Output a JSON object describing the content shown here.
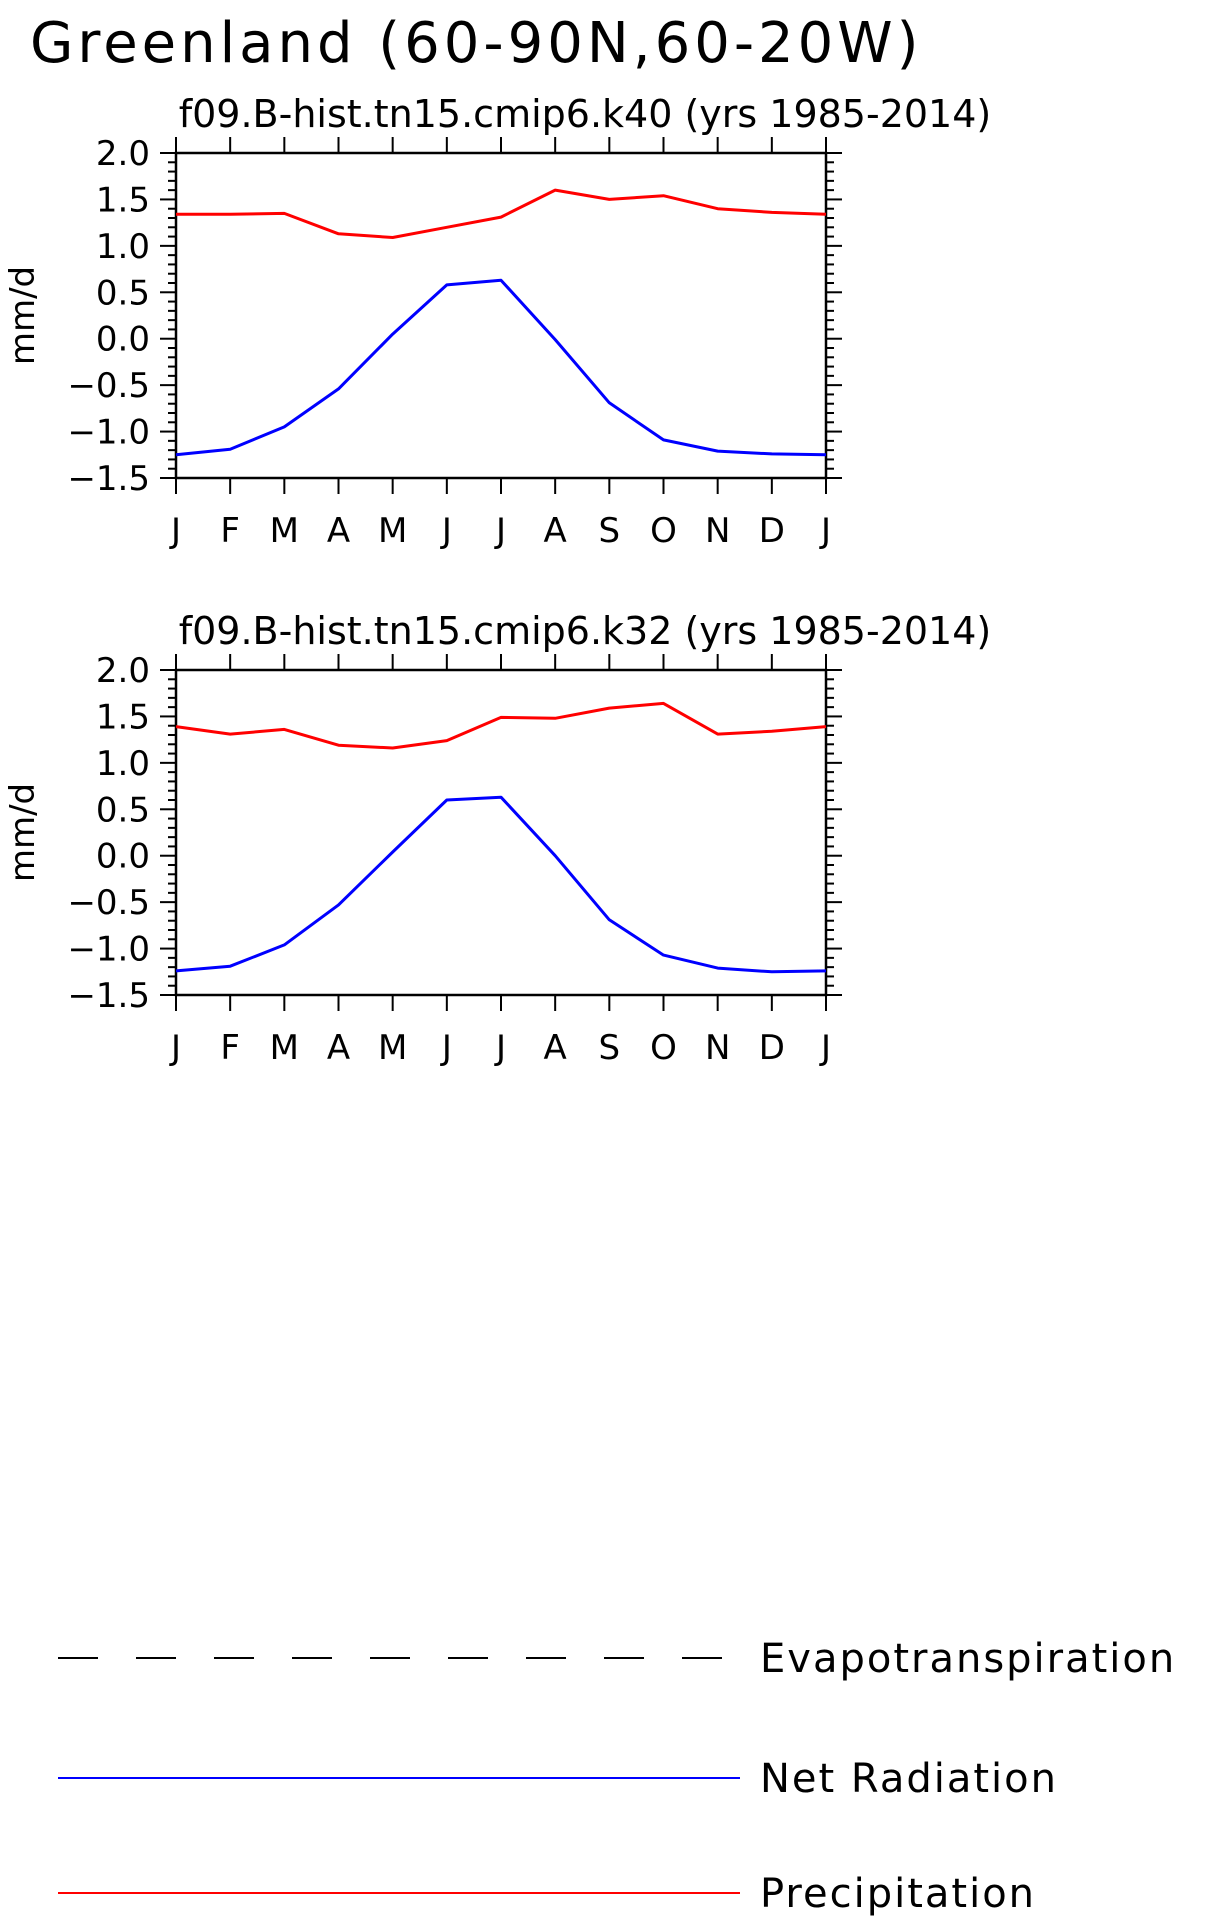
{
  "figure_title": "Greenland (60-90N,60-20W)",
  "colors": {
    "net_radiation": "#0000ff",
    "precipitation": "#ff0000",
    "evapotranspiration": "#000000"
  },
  "legend": [
    {
      "label": "Evapotranspiration",
      "style": "dashed",
      "color": "#000000"
    },
    {
      "label": "Net Radiation",
      "style": "solid",
      "color": "#0000ff"
    },
    {
      "label": "Precipitation",
      "style": "solid",
      "color": "#ff0000"
    }
  ],
  "chart_data": [
    {
      "type": "line",
      "title": "f09.B-hist.tn15.cmip6.k40 (yrs 1985-2014)",
      "ylabel": "mm/d",
      "xlabel": "",
      "categories": [
        "J",
        "F",
        "M",
        "A",
        "M",
        "J",
        "J",
        "A",
        "S",
        "O",
        "N",
        "D",
        "J"
      ],
      "ylim": [
        -1.5,
        2.0
      ],
      "yticks": [
        "2.0",
        "1.5",
        "1.0",
        "0.5",
        "0.0",
        "-0.5",
        "-1.0",
        "-1.5"
      ],
      "series": [
        {
          "name": "Precipitation",
          "color": "#ff0000",
          "values": [
            1.34,
            1.34,
            1.35,
            1.13,
            1.09,
            1.2,
            1.31,
            1.6,
            1.5,
            1.54,
            1.4,
            1.36,
            1.34
          ]
        },
        {
          "name": "Net Radiation",
          "color": "#0000ff",
          "values": [
            -1.25,
            -1.19,
            -0.95,
            -0.54,
            0.05,
            0.58,
            0.63,
            -0.01,
            -0.69,
            -1.09,
            -1.21,
            -1.24,
            -1.25
          ]
        }
      ]
    },
    {
      "type": "line",
      "title": "f09.B-hist.tn15.cmip6.k32 (yrs 1985-2014)",
      "ylabel": "mm/d",
      "xlabel": "",
      "categories": [
        "J",
        "F",
        "M",
        "A",
        "M",
        "J",
        "J",
        "A",
        "S",
        "O",
        "N",
        "D",
        "J"
      ],
      "ylim": [
        -1.5,
        2.0
      ],
      "yticks": [
        "2.0",
        "1.5",
        "1.0",
        "0.5",
        "0.0",
        "-0.5",
        "-1.0",
        "-1.5"
      ],
      "series": [
        {
          "name": "Precipitation",
          "color": "#ff0000",
          "values": [
            1.39,
            1.31,
            1.36,
            1.19,
            1.16,
            1.24,
            1.49,
            1.48,
            1.59,
            1.64,
            1.31,
            1.34,
            1.39
          ]
        },
        {
          "name": "Net Radiation",
          "color": "#0000ff",
          "values": [
            -1.24,
            -1.19,
            -0.96,
            -0.53,
            0.04,
            0.6,
            0.63,
            0.0,
            -0.69,
            -1.07,
            -1.21,
            -1.25,
            -1.24
          ]
        }
      ]
    }
  ]
}
